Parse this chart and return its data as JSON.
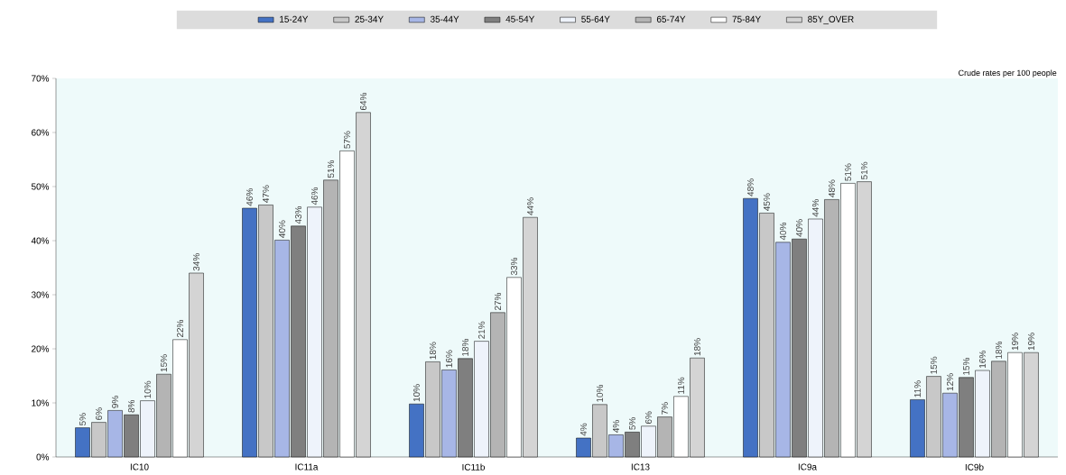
{
  "chart_data": {
    "type": "bar",
    "categories": [
      "IC10",
      "IC11a",
      "IC11b",
      "IC13",
      "IC9a",
      "IC9b"
    ],
    "series": [
      {
        "name": "15-24Y",
        "color": "#4472c4",
        "values": [
          5.4,
          46.0,
          9.8,
          3.5,
          47.8,
          10.6
        ],
        "value_labels": [
          "5%",
          "46%",
          "10%",
          "4%",
          "48%",
          "11%"
        ]
      },
      {
        "name": "25-34Y",
        "color": "#c8c8c8",
        "values": [
          6.4,
          46.6,
          17.6,
          9.7,
          45.1,
          14.9
        ],
        "value_labels": [
          "6%",
          "47%",
          "18%",
          "10%",
          "45%",
          "15%"
        ]
      },
      {
        "name": "35-44Y",
        "color": "#a7b6e6",
        "values": [
          8.6,
          40.1,
          16.1,
          4.1,
          39.7,
          11.8
        ],
        "value_labels": [
          "9%",
          "40%",
          "16%",
          "4%",
          "40%",
          "12%"
        ]
      },
      {
        "name": "45-54Y",
        "color": "#7f7f7f",
        "values": [
          7.8,
          42.7,
          18.2,
          4.6,
          40.3,
          14.7
        ],
        "value_labels": [
          "8%",
          "43%",
          "18%",
          "5%",
          "40%",
          "15%"
        ]
      },
      {
        "name": "55-64Y",
        "color": "#eef3fb",
        "values": [
          10.4,
          46.2,
          21.4,
          5.7,
          44.0,
          16.0
        ],
        "value_labels": [
          "10%",
          "46%",
          "21%",
          "6%",
          "44%",
          "16%"
        ]
      },
      {
        "name": "65-74Y",
        "color": "#b4b4b4",
        "values": [
          15.3,
          51.2,
          26.7,
          7.4,
          47.6,
          17.7
        ],
        "value_labels": [
          "15%",
          "51%",
          "27%",
          "7%",
          "48%",
          "18%"
        ]
      },
      {
        "name": "75-84Y",
        "color": "#ffffff",
        "values": [
          21.7,
          56.6,
          33.2,
          11.2,
          50.6,
          19.3
        ],
        "value_labels": [
          "22%",
          "57%",
          "33%",
          "11%",
          "51%",
          "19%"
        ]
      },
      {
        "name": "85Y_OVER",
        "color": "#d4d4d4",
        "values": [
          34.0,
          63.7,
          44.3,
          18.3,
          50.9,
          19.3
        ],
        "value_labels": [
          "34%",
          "64%",
          "44%",
          "18%",
          "51%",
          "19%"
        ]
      }
    ],
    "ylim": [
      0,
      70
    ],
    "yticks": [
      {
        "value": 0,
        "label": "0%"
      },
      {
        "value": 10,
        "label": "10%"
      },
      {
        "value": 20,
        "label": "20%"
      },
      {
        "value": 30,
        "label": "30%"
      },
      {
        "value": 40,
        "label": "40%"
      },
      {
        "value": 50,
        "label": "50%"
      },
      {
        "value": 60,
        "label": "60%"
      },
      {
        "value": 70,
        "label": "70%"
      }
    ],
    "legend": "top",
    "annotations": [
      "Crude rates per 100 people"
    ]
  }
}
